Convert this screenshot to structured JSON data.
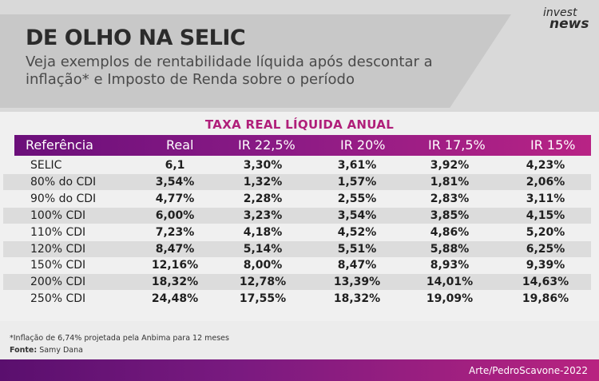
{
  "header": {
    "title": "DE OLHO NA SELIC",
    "subtitle": "Veja exemplos de rentabilidade líquida após descontar a inflação* e Imposto de Renda sobre o período",
    "logo_line1": "invest",
    "logo_line2": "news"
  },
  "table": {
    "title": "TAXA REAL LÍQUIDA ANUAL",
    "columns": [
      "Referência",
      "Real",
      "IR 22,5%",
      "IR 20%",
      "IR 17,5%",
      "IR 15%"
    ],
    "rows": [
      [
        "SELIC",
        "6,1",
        "3,30%",
        "3,61%",
        "3,92%",
        "4,23%"
      ],
      [
        "80% do CDI",
        "3,54%",
        "1,32%",
        "1,57%",
        "1,81%",
        "2,06%"
      ],
      [
        "90% do CDI",
        "4,77%",
        "2,28%",
        "2,55%",
        "2,83%",
        "3,11%"
      ],
      [
        "100% CDI",
        "6,00%",
        "3,23%",
        "3,54%",
        "3,85%",
        "4,15%"
      ],
      [
        "110% CDI",
        "7,23%",
        "4,18%",
        "4,52%",
        "4,86%",
        "5,20%"
      ],
      [
        "120% CDI",
        "8,47%",
        "5,14%",
        "5,51%",
        "5,88%",
        "6,25%"
      ],
      [
        "150% CDI",
        "12,16%",
        "8,00%",
        "8,47%",
        "8,93%",
        "9,39%"
      ],
      [
        "200% CDI",
        "18,32%",
        "12,78%",
        "13,39%",
        "14,01%",
        "14,63%"
      ],
      [
        "250% CDI",
        "24,48%",
        "17,55%",
        "18,32%",
        "19,09%",
        "19,86%"
      ]
    ]
  },
  "footer": {
    "note": "*Inflação de 6,74% projetada pela Anbima para 12 meses",
    "source_label": "Fonte:",
    "source_value": " Samy Dana",
    "credit": "Arte/PedroScavone-2022"
  }
}
